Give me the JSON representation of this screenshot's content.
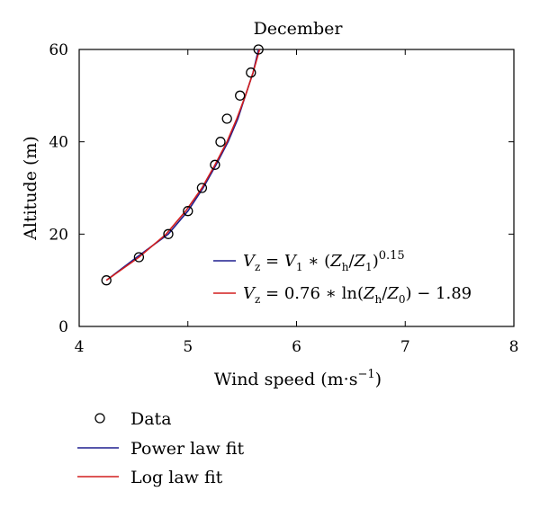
{
  "chart_data": {
    "type": "line",
    "title": "December",
    "xlabel": "Wind speed",
    "xlabel_unit": "(m·s",
    "xlabel_unit_sup": "−1",
    "xlabel_unit_close": ")",
    "ylabel": "Altitude (m)",
    "xlim": [
      4,
      8
    ],
    "ylim": [
      0,
      60
    ],
    "xticks": [
      "4",
      "5",
      "6",
      "7",
      "8"
    ],
    "yticks": [
      "0",
      "20",
      "40",
      "60"
    ],
    "grid": false,
    "colors": {
      "power": "#1f1f8f",
      "log": "#d21e1e",
      "data": "#000000"
    },
    "series": [
      {
        "name": "Data",
        "kind": "scatter",
        "points": [
          [
            4.25,
            10
          ],
          [
            4.55,
            15
          ],
          [
            4.82,
            20
          ],
          [
            5.0,
            25
          ],
          [
            5.13,
            30
          ],
          [
            5.25,
            35
          ],
          [
            5.3,
            40
          ],
          [
            5.36,
            45
          ],
          [
            5.48,
            50
          ],
          [
            5.58,
            55
          ],
          [
            5.65,
            60
          ]
        ]
      },
      {
        "name": "Power law fit",
        "kind": "line",
        "points": [
          [
            4.25,
            10
          ],
          [
            4.53,
            15
          ],
          [
            4.82,
            20
          ],
          [
            5.0,
            25
          ],
          [
            5.14,
            30
          ],
          [
            5.26,
            35
          ],
          [
            5.37,
            40
          ],
          [
            5.46,
            45
          ],
          [
            5.53,
            50
          ],
          [
            5.6,
            55
          ],
          [
            5.65,
            60
          ]
        ]
      },
      {
        "name": "Log law fit",
        "kind": "line",
        "points": [
          [
            4.25,
            10
          ],
          [
            4.55,
            15
          ],
          [
            4.8,
            20
          ],
          [
            4.98,
            25
          ],
          [
            5.13,
            30
          ],
          [
            5.25,
            35
          ],
          [
            5.36,
            40
          ],
          [
            5.45,
            45
          ],
          [
            5.53,
            50
          ],
          [
            5.6,
            55
          ],
          [
            5.66,
            60
          ]
        ]
      }
    ],
    "annotations": {
      "power_eq": {
        "lhs": "V",
        "lhs_sub": "z",
        "eq": " = ",
        "v": "V",
        "v_sub": "1",
        "mid": " ∗ (",
        "zh": "Z",
        "zh_sub": "h",
        "slash": "/",
        "z1": "Z",
        "z1_sub": "1",
        "close": ")",
        "exp": "0.15"
      },
      "log_eq": {
        "lhs": "V",
        "lhs_sub": "z",
        "eq": " = 0.76 ∗ ln(",
        "zh": "Z",
        "zh_sub": "h",
        "slash": "/",
        "z0": "Z",
        "z0_sub": "0",
        "close": ") − 1.89"
      }
    },
    "legend": {
      "placement": "below",
      "items": [
        {
          "label": "Data",
          "marker": "circle"
        },
        {
          "label": "Power law fit",
          "marker": "line"
        },
        {
          "label": "Log law fit",
          "marker": "line"
        }
      ]
    }
  }
}
